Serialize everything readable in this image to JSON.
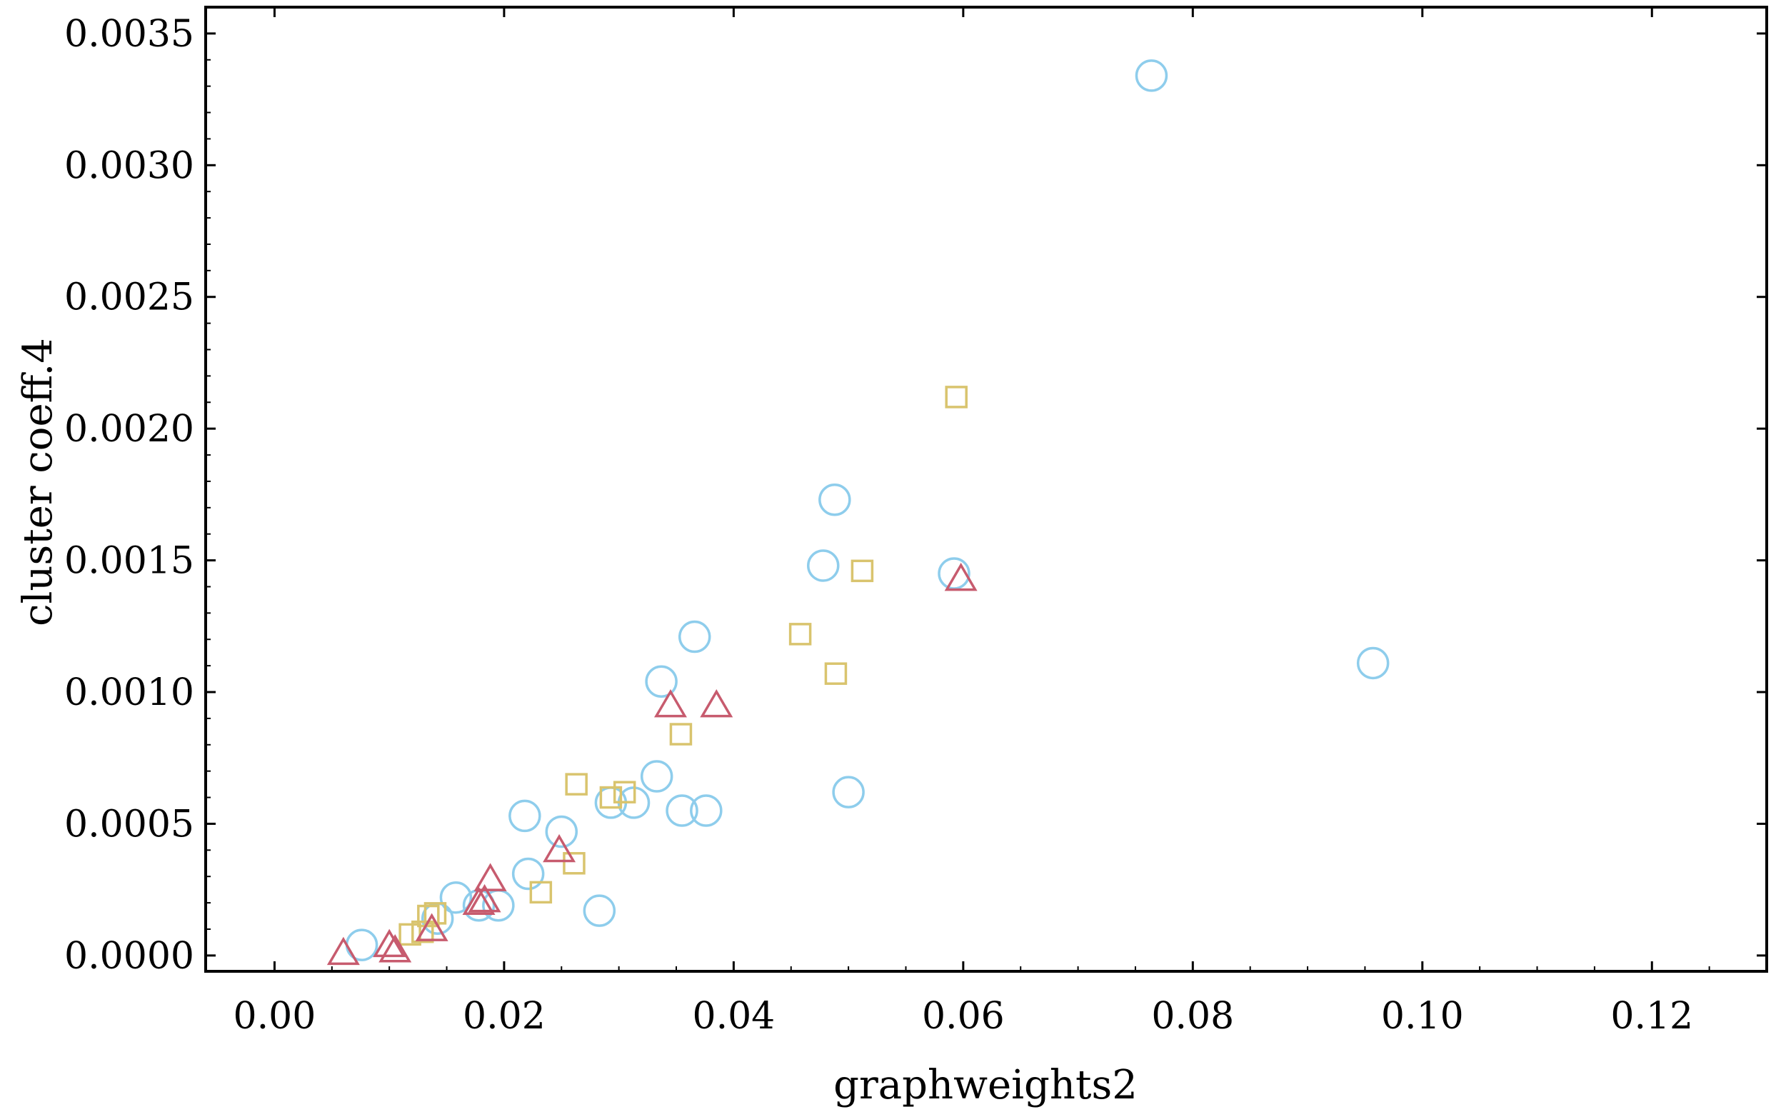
{
  "chart_data": {
    "type": "scatter",
    "title": "",
    "xlabel": "graphweights2",
    "ylabel": "cluster coeff.4",
    "xlim": [
      -0.006,
      0.13
    ],
    "ylim": [
      -6e-05,
      0.0036
    ],
    "x_ticks": [
      0.0,
      0.02,
      0.04,
      0.06,
      0.08,
      0.1,
      0.12
    ],
    "x_tick_labels": [
      "0.00",
      "0.02",
      "0.04",
      "0.06",
      "0.08",
      "0.10",
      "0.12"
    ],
    "y_ticks": [
      0.0,
      0.0005,
      0.001,
      0.0015,
      0.002,
      0.0025,
      0.003,
      0.0035
    ],
    "y_tick_labels": [
      "0.0000",
      "0.0005",
      "0.0010",
      "0.0015",
      "0.0020",
      "0.0025",
      "0.0030",
      "0.0035"
    ],
    "grid": false,
    "legend": "none",
    "series": [
      {
        "marker": "circle",
        "color": "#8ecdec",
        "points": [
          [
            0.0076,
            4e-05
          ],
          [
            0.0142,
            0.00014
          ],
          [
            0.0158,
            0.00022
          ],
          [
            0.0178,
            0.00019
          ],
          [
            0.0195,
            0.00019
          ],
          [
            0.0218,
            0.00053
          ],
          [
            0.0221,
            0.00031
          ],
          [
            0.025,
            0.00047
          ],
          [
            0.0283,
            0.00017
          ],
          [
            0.0293,
            0.00058
          ],
          [
            0.0313,
            0.00058
          ],
          [
            0.0333,
            0.00068
          ],
          [
            0.0337,
            0.00104
          ],
          [
            0.0355,
            0.00055
          ],
          [
            0.0366,
            0.00121
          ],
          [
            0.0376,
            0.00055
          ],
          [
            0.0478,
            0.00148
          ],
          [
            0.0488,
            0.00173
          ],
          [
            0.05,
            0.00062
          ],
          [
            0.0592,
            0.00145
          ],
          [
            0.0764,
            0.00334
          ],
          [
            0.0957,
            0.00111
          ]
        ]
      },
      {
        "marker": "square",
        "color": "#d9c46e",
        "points": [
          [
            0.0118,
            8e-05
          ],
          [
            0.0129,
            9e-05
          ],
          [
            0.0134,
            0.00015
          ],
          [
            0.014,
            0.00016
          ],
          [
            0.0232,
            0.00024
          ],
          [
            0.0261,
            0.00035
          ],
          [
            0.0263,
            0.00065
          ],
          [
            0.0293,
            0.0006
          ],
          [
            0.0305,
            0.00062
          ],
          [
            0.0354,
            0.00084
          ],
          [
            0.0458,
            0.00122
          ],
          [
            0.0489,
            0.00107
          ],
          [
            0.0512,
            0.00146
          ],
          [
            0.0594,
            0.00212
          ]
        ]
      },
      {
        "marker": "triangle",
        "color": "#c75b6e",
        "points": [
          [
            0.006,
            1e-05
          ],
          [
            0.01,
            4e-05
          ],
          [
            0.0105,
            2e-05
          ],
          [
            0.0137,
            0.0001
          ],
          [
            0.0178,
            0.0002
          ],
          [
            0.0183,
            0.00021
          ],
          [
            0.0188,
            0.00029
          ],
          [
            0.0248,
            0.0004
          ],
          [
            0.0345,
            0.00095
          ],
          [
            0.0385,
            0.00095
          ],
          [
            0.0598,
            0.00143
          ]
        ]
      }
    ]
  }
}
